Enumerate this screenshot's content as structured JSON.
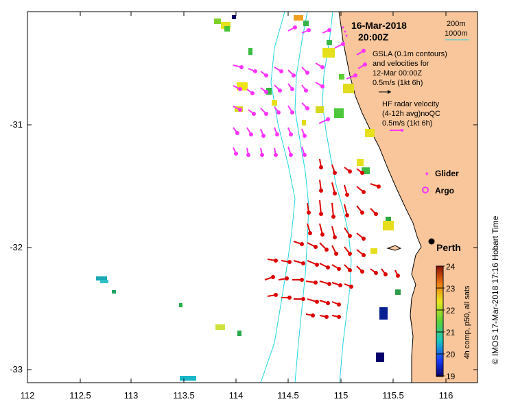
{
  "map": {
    "date": "16-Mar-2018",
    "time": "20:00Z",
    "lon_ticks": [
      "112",
      "112.5",
      "113",
      "113.5",
      "114",
      "114.5",
      "115",
      "115.5",
      "116"
    ],
    "lat_ticks": [
      "-31",
      "-32",
      "-33"
    ],
    "contour_legend": {
      "shallow": "200m",
      "deep": "1000m"
    },
    "gsla_legend": {
      "line1": "GSLA (0.1m contours)",
      "line2": "and velocities for",
      "line3": "12-Mar 00:00Z",
      "line4": "0.5m/s (1kt 6h)"
    },
    "hf_legend": {
      "line1": "HF radar velocity",
      "line2": "(4-12h avg)noQC",
      "line3": "0.5m/s (1kt 6h)"
    },
    "glider_label": "Glider",
    "argo_label": "Argo",
    "city_label": "Perth",
    "colorbar": {
      "label": "4h comp, p50, all sats",
      "ticks": [
        "24",
        "23",
        "22",
        "21",
        "20",
        "19"
      ]
    },
    "credit": "© IMOS 17-Mar-2018 17:16 Hobart Time",
    "colors": {
      "land": "#f9c69b",
      "isobath": "#1ed6e0",
      "gsla_arrow": "#ff33ff",
      "hf_arrow": "#dd0000"
    }
  }
}
